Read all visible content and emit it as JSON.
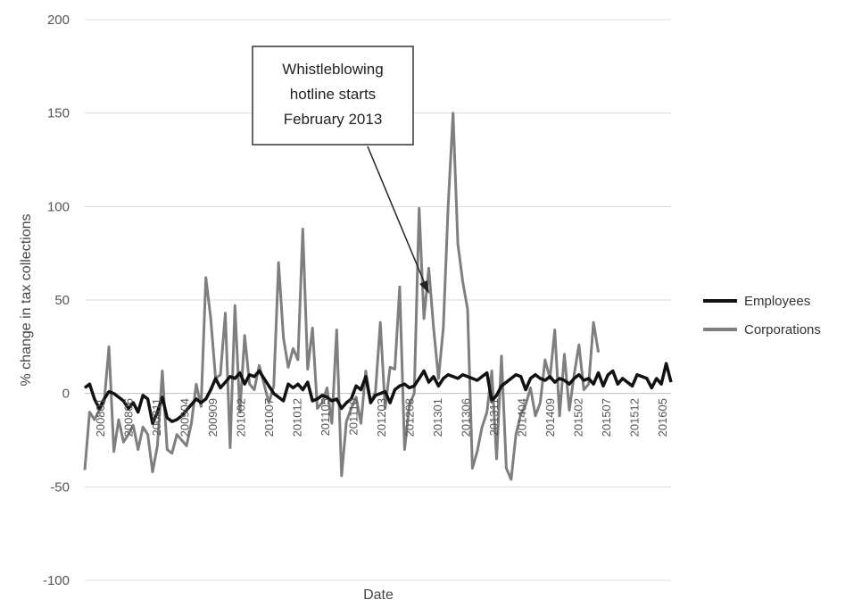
{
  "chart_data": {
    "type": "line",
    "title": "",
    "xlabel": "Date",
    "ylabel": "% change in tax collections",
    "ylim": [
      -100,
      200
    ],
    "yticks": [
      -100,
      -50,
      0,
      50,
      100,
      150,
      200
    ],
    "grid": true,
    "legend_position": "right",
    "x_tick_labels": [
      "200801",
      "200806",
      "200811",
      "200904",
      "200909",
      "201002",
      "201007",
      "201012",
      "201105",
      "201110",
      "201203",
      "201208",
      "201301",
      "201306",
      "201311",
      "201404",
      "201409",
      "201502",
      "201507",
      "201512",
      "201605"
    ],
    "series": [
      {
        "name": "Employees",
        "color": "#111111",
        "values": [
          3,
          5,
          -3,
          -8,
          -3,
          1,
          0,
          -2,
          -4,
          -8,
          -5,
          -10,
          -1,
          -3,
          -16,
          -10,
          -2,
          -13,
          -15,
          -14,
          -12,
          -9,
          -6,
          -3,
          -5,
          -3,
          2,
          8,
          3,
          6,
          9,
          8,
          11,
          5,
          10,
          9,
          12,
          8,
          4,
          0,
          -2,
          -4,
          5,
          3,
          5,
          2,
          6,
          -4,
          -3,
          -1,
          -2,
          -4,
          -3,
          -8,
          -5,
          -3,
          4,
          2,
          9,
          -5,
          -1,
          0,
          1,
          -5,
          2,
          4,
          5,
          3,
          4,
          8,
          12,
          6,
          9,
          4,
          8,
          10,
          9,
          8,
          10,
          9,
          8,
          7,
          9,
          11,
          -4,
          -1,
          4,
          6,
          8,
          10,
          9,
          2,
          8,
          10,
          8,
          7,
          9,
          6,
          8,
          7,
          5,
          8,
          10,
          7,
          8,
          5,
          11,
          4,
          10,
          12,
          5,
          8,
          6,
          4,
          10,
          9,
          8,
          3,
          8,
          5,
          16,
          6
        ]
      },
      {
        "name": "Corporations",
        "color": "#7f7f7f",
        "values": [
          -41,
          -10,
          -14,
          -9,
          -5,
          25,
          -31,
          -14,
          -26,
          -22,
          -17,
          -30,
          -18,
          -22,
          -42,
          -28,
          12,
          -30,
          -32,
          -22,
          -25,
          -28,
          -16,
          5,
          -7,
          62,
          40,
          8,
          10,
          43,
          -29,
          47,
          -10,
          31,
          5,
          2,
          15,
          5,
          -5,
          4,
          70,
          30,
          14,
          24,
          18,
          88,
          13,
          35,
          -8,
          -5,
          3,
          -16,
          34,
          -44,
          -15,
          -8,
          -2,
          -16,
          12,
          -5,
          1,
          38,
          -8,
          14,
          13,
          57,
          -30,
          -6,
          0,
          99,
          40,
          67,
          35,
          8,
          35,
          100,
          150,
          80,
          60,
          45,
          -40,
          -31,
          -18,
          -10,
          12,
          -35,
          20,
          -40,
          -46,
          -22,
          -11,
          -6,
          3,
          -12,
          -5,
          18,
          8,
          34,
          -12,
          21,
          -9,
          10,
          26,
          2,
          5,
          38,
          22
        ]
      }
    ],
    "annotation": {
      "lines": [
        "Whistleblowing",
        "hotline starts",
        "February 2013"
      ]
    }
  }
}
